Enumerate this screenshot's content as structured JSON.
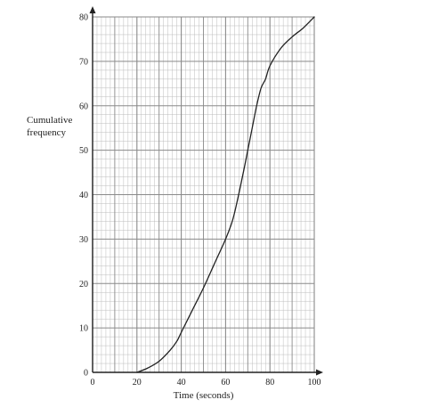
{
  "chart_data": {
    "type": "line",
    "title": "",
    "xlabel": "Time (seconds)",
    "ylabel": [
      "Cumulative",
      "frequency"
    ],
    "xlim": [
      0,
      100
    ],
    "ylim": [
      0,
      80
    ],
    "x_ticks": [
      0,
      20,
      40,
      60,
      80,
      100
    ],
    "y_ticks": [
      0,
      10,
      20,
      30,
      40,
      50,
      60,
      70,
      80
    ],
    "grid": true,
    "legend": "none",
    "series": [
      {
        "x": [
          20,
          25,
          30,
          35,
          38,
          40,
          45,
          50,
          55,
          60,
          63,
          65,
          68,
          70,
          72,
          74,
          76,
          78,
          80,
          85,
          90,
          95,
          100
        ],
        "y": [
          0,
          1,
          2.5,
          5,
          7,
          9,
          14,
          19,
          24.5,
          30,
          34,
          38,
          45,
          50,
          55,
          60,
          64,
          66,
          69,
          73,
          75.5,
          77.5,
          80
        ]
      }
    ]
  },
  "colors": {
    "grid_major": "#8a8a8a",
    "grid_minor": "#bcbcbc",
    "axis": "#222222",
    "curve": "#222222"
  }
}
